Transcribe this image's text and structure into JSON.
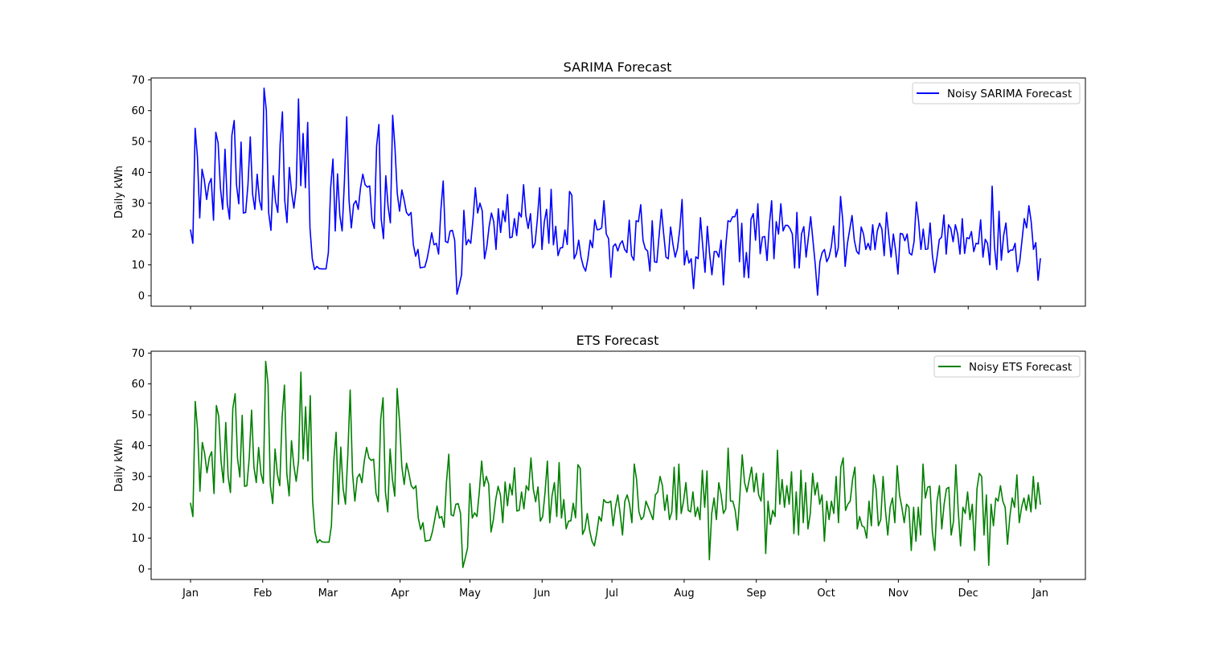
{
  "chart_data": [
    {
      "type": "line",
      "title": "SARIMA Forecast",
      "ylabel": "Daily kWh",
      "xlabel": "",
      "ylim": [
        -3.4,
        70.6
      ],
      "yticks": [
        0,
        10,
        20,
        30,
        40,
        50,
        60,
        70
      ],
      "xtick_labels_visible": false,
      "legend_position": "top-right",
      "grid": false,
      "series": [
        {
          "name": "Noisy SARIMA Forecast",
          "color": "#0000ff",
          "x_start": "2023-01-01",
          "x_end": "2024-01-01",
          "values": [
            21.3,
            17.0,
            54.3,
            45.0,
            25.2,
            41.0,
            37.5,
            31.2,
            36.2,
            38.0,
            24.5,
            53.0,
            49.5,
            35.0,
            28.0,
            47.5,
            30.0,
            24.8,
            52.0,
            56.8,
            36.0,
            29.8,
            49.8,
            26.8,
            27.0,
            36.0,
            51.5,
            33.0,
            28.0,
            39.4,
            31.0,
            27.8,
            67.3,
            60.0,
            27.0,
            21.2,
            38.9,
            30.6,
            27.0,
            49.2,
            59.6,
            31.0,
            23.7,
            41.6,
            33.5,
            28.4,
            35.0,
            63.8,
            35.7,
            52.6,
            35.0,
            56.2,
            22.0,
            12.0,
            8.5,
            9.5,
            8.8,
            8.7,
            8.7,
            8.7,
            14.0,
            35.0,
            44.3,
            21.0,
            39.5,
            26.0,
            21.0,
            37.2,
            58.0,
            31.0,
            22.0,
            29.6,
            30.8,
            28.0,
            35.0,
            39.4,
            36.0,
            35.2,
            35.6,
            24.5,
            21.8,
            48.5,
            55.5,
            25.0,
            18.5,
            38.9,
            29.0,
            23.6,
            58.5,
            48.0,
            33.2,
            27.4,
            34.3,
            31.0,
            27.0,
            26.0,
            27.0,
            16.6,
            12.8,
            15.0,
            9.0,
            9.2,
            9.3,
            12.0,
            16.0,
            20.4,
            16.5,
            17.0,
            13.5,
            28.0,
            37.2,
            17.6,
            17.2,
            21.0,
            21.2,
            18.0,
            0.5,
            3.5,
            6.8,
            27.7,
            16.5,
            18.2,
            17.0,
            25.0,
            35.0,
            26.8,
            30.0,
            27.5,
            12.0,
            16.0,
            22.5,
            26.8,
            24.0,
            15.0,
            28.2,
            20.5,
            27.6,
            24.0,
            32.8,
            18.8,
            19.0,
            25.0,
            19.5,
            27.0,
            25.5,
            36.0,
            26.0,
            21.8,
            26.6,
            15.5,
            17.0,
            24.8,
            35.0,
            15.0,
            23.8,
            28.0,
            17.0,
            34.5,
            16.5,
            22.5,
            13.0,
            15.5,
            15.6,
            21.3,
            16.6,
            33.8,
            32.6,
            12.0,
            13.7,
            18.0,
            12.5,
            9.5,
            8.0,
            12.0,
            18.0,
            15.6,
            24.6,
            21.4,
            21.5,
            22.0,
            30.8,
            20.0,
            18.5,
            6.0,
            16.0,
            16.8,
            14.5,
            16.8,
            17.8,
            15.0,
            14.0,
            24.5,
            13.0,
            11.5,
            24.3,
            24.0,
            29.5,
            18.0,
            15.2,
            14.5,
            8.0,
            24.3,
            11.0,
            10.8,
            19.5,
            28.0,
            20.0,
            12.5,
            12.0,
            22.3,
            16.8,
            12.5,
            15.3,
            21.6,
            31.2,
            10.0,
            14.6,
            10.6,
            12.0,
            2.3,
            12.6,
            12.0,
            25.3,
            16.0,
            7.6,
            22.5,
            13.5,
            6.8,
            14.3,
            14.3,
            12.5,
            18.0,
            3.5,
            16.0,
            24.3,
            24.0,
            25.6,
            25.6,
            28.0,
            11.0,
            23.5,
            6.0,
            14.0,
            5.8,
            24.8,
            26.6,
            18.0,
            29.8,
            13.6,
            19.0,
            19.2,
            11.4,
            23.0,
            30.8,
            12.0,
            24.0,
            20.0,
            29.8,
            21.0,
            22.8,
            22.8,
            21.8,
            20.0,
            9.0,
            27.0,
            9.0,
            20.0,
            22.4,
            12.5,
            19.0,
            25.6,
            17.8,
            10.0,
            0.2,
            11.0,
            14.0,
            15.0,
            11.0,
            12.6,
            16.0,
            22.6,
            12.5,
            15.5,
            32.2,
            24.0,
            9.5,
            17.0,
            21.5,
            26.0,
            18.0,
            14.4,
            13.5,
            22.3,
            20.0,
            15.0,
            17.0,
            14.8,
            23.0,
            15.0,
            21.0,
            23.5,
            21.6,
            13.0,
            27.0,
            19.6,
            12.5,
            20.0,
            14.5,
            7.0,
            20.2,
            20.0,
            17.8,
            20.0,
            13.8,
            13.2,
            17.5,
            30.4,
            24.0,
            15.0,
            21.6,
            15.0,
            15.2,
            23.6,
            13.0,
            7.5,
            12.5,
            18.2,
            19.0,
            26.2,
            13.5,
            23.0,
            21.8,
            17.5,
            23.0,
            20.0,
            13.5,
            25.0,
            13.7,
            18.8,
            18.5,
            20.8,
            14.3,
            17.0,
            16.8,
            24.6,
            12.5,
            18.3,
            17.0,
            10.0,
            35.5,
            16.0,
            8.5,
            27.4,
            11.5,
            19.5,
            23.6,
            14.0,
            14.8,
            14.8,
            17.0,
            7.8,
            11.0,
            18.0,
            25.0,
            22.0,
            29.2,
            24.0,
            15.0,
            17.2,
            5.0,
            12.0
          ]
        }
      ]
    },
    {
      "type": "line",
      "title": "ETS Forecast",
      "ylabel": "Daily kWh",
      "xlabel": "",
      "ylim": [
        -3.4,
        70.6
      ],
      "yticks": [
        0,
        10,
        20,
        30,
        40,
        50,
        60,
        70
      ],
      "xticks": [
        "Jan",
        "Feb",
        "Mar",
        "Apr",
        "May",
        "Jun",
        "Jul",
        "Aug",
        "Sep",
        "Oct",
        "Nov",
        "Dec",
        "Jan"
      ],
      "legend_position": "top-right",
      "grid": false,
      "series": [
        {
          "name": "Noisy ETS Forecast",
          "color": "#008000",
          "x_start": "2023-01-01",
          "x_end": "2024-01-01",
          "values": [
            21.3,
            17.0,
            54.3,
            45.0,
            25.2,
            41.0,
            37.5,
            31.2,
            36.2,
            38.0,
            24.5,
            53.0,
            49.5,
            35.0,
            28.0,
            47.5,
            30.0,
            24.8,
            52.0,
            56.8,
            36.0,
            29.8,
            49.8,
            26.8,
            27.0,
            36.0,
            51.5,
            33.0,
            28.0,
            39.4,
            31.0,
            27.8,
            67.3,
            60.0,
            27.0,
            21.2,
            38.9,
            30.6,
            27.0,
            49.2,
            59.6,
            31.0,
            23.7,
            41.6,
            33.5,
            28.4,
            35.0,
            63.8,
            35.7,
            52.6,
            35.0,
            56.2,
            22.0,
            12.0,
            8.5,
            9.5,
            8.8,
            8.7,
            8.7,
            8.7,
            14.0,
            35.0,
            44.3,
            21.0,
            39.5,
            26.0,
            21.0,
            37.2,
            58.0,
            31.0,
            22.0,
            29.6,
            30.8,
            28.0,
            35.0,
            39.4,
            36.0,
            35.2,
            35.6,
            24.5,
            21.8,
            48.5,
            55.5,
            25.0,
            18.5,
            38.9,
            29.0,
            23.6,
            58.5,
            48.0,
            33.2,
            27.4,
            34.3,
            31.0,
            27.0,
            26.0,
            27.0,
            16.6,
            12.8,
            15.0,
            9.0,
            9.2,
            9.3,
            12.0,
            16.0,
            20.4,
            16.5,
            17.0,
            13.5,
            28.0,
            37.2,
            17.6,
            17.2,
            21.0,
            21.2,
            18.0,
            0.5,
            3.5,
            6.8,
            27.7,
            16.5,
            18.2,
            17.0,
            25.0,
            35.0,
            26.8,
            30.0,
            27.5,
            12.0,
            16.0,
            22.5,
            26.8,
            24.0,
            15.0,
            28.2,
            20.5,
            27.6,
            24.0,
            32.8,
            18.8,
            19.0,
            25.0,
            19.5,
            27.0,
            25.5,
            36.0,
            26.0,
            21.8,
            26.6,
            15.5,
            17.0,
            24.8,
            35.0,
            15.0,
            23.8,
            28.0,
            17.0,
            34.5,
            16.5,
            22.5,
            13.0,
            15.5,
            15.6,
            21.3,
            16.6,
            33.8,
            32.6,
            11.2,
            13.0,
            18.0,
            12.5,
            9.0,
            7.5,
            11.5,
            17.0,
            15.5,
            22.5,
            21.6,
            21.5,
            22.0,
            14.0,
            20.0,
            24.0,
            18.0,
            11.0,
            22.0,
            24.0,
            21.0,
            15.0,
            34.0,
            29.0,
            18.5,
            16.0,
            17.0,
            22.0,
            20.0,
            18.0,
            16.0,
            24.0,
            25.0,
            30.0,
            27.0,
            19.0,
            24.0,
            16.0,
            18.5,
            33.0,
            16.0,
            34.0,
            18.0,
            22.0,
            28.0,
            19.0,
            18.5,
            25.0,
            17.0,
            20.0,
            16.0,
            32.0,
            20.0,
            31.8,
            3.0,
            18.0,
            23.0,
            16.0,
            28.0,
            24.0,
            18.0,
            19.5,
            39.2,
            22.0,
            22.0,
            19.0,
            12.5,
            24.0,
            37.0,
            28.0,
            25.0,
            29.0,
            33.0,
            25.0,
            31.0,
            24.0,
            22.0,
            31.0,
            5.0,
            22.0,
            14.5,
            19.0,
            17.0,
            38.5,
            21.0,
            29.0,
            20.0,
            27.0,
            21.0,
            31.5,
            11.5,
            25.0,
            11.0,
            32.0,
            15.0,
            28.0,
            13.0,
            18.0,
            31.0,
            24.0,
            28.0,
            21.0,
            24.0,
            9.0,
            22.0,
            16.0,
            22.0,
            18.0,
            30.0,
            15.0,
            33.0,
            36.0,
            19.0,
            21.0,
            22.0,
            29.0,
            33.0,
            13.0,
            17.0,
            14.0,
            13.5,
            10.0,
            22.0,
            14.0,
            30.5,
            26.0,
            14.0,
            16.0,
            30.0,
            19.0,
            11.0,
            20.0,
            23.0,
            15.0,
            33.5,
            24.0,
            20.0,
            15.0,
            21.0,
            20.0,
            6.0,
            20.0,
            9.0,
            20.0,
            11.0,
            34.0,
            23.0,
            26.5,
            26.8,
            12.0,
            6.0,
            22.0,
            27.0,
            13.0,
            21.0,
            26.0,
            26.5,
            11.0,
            15.5,
            33.8,
            19.0,
            7.5,
            20.0,
            18.0,
            25.0,
            16.0,
            21.0,
            6.0,
            26.0,
            31.0,
            30.0,
            11.0,
            24.0,
            1.2,
            21.0,
            14.0,
            23.0,
            22.0,
            27.0,
            22.0,
            20.0,
            8.0,
            17.0,
            23.0,
            20.0,
            30.5,
            15.0,
            20.0,
            23.0,
            19.0,
            24.0,
            18.5,
            30.0,
            19.5,
            28.0,
            21.0
          ]
        }
      ]
    }
  ]
}
